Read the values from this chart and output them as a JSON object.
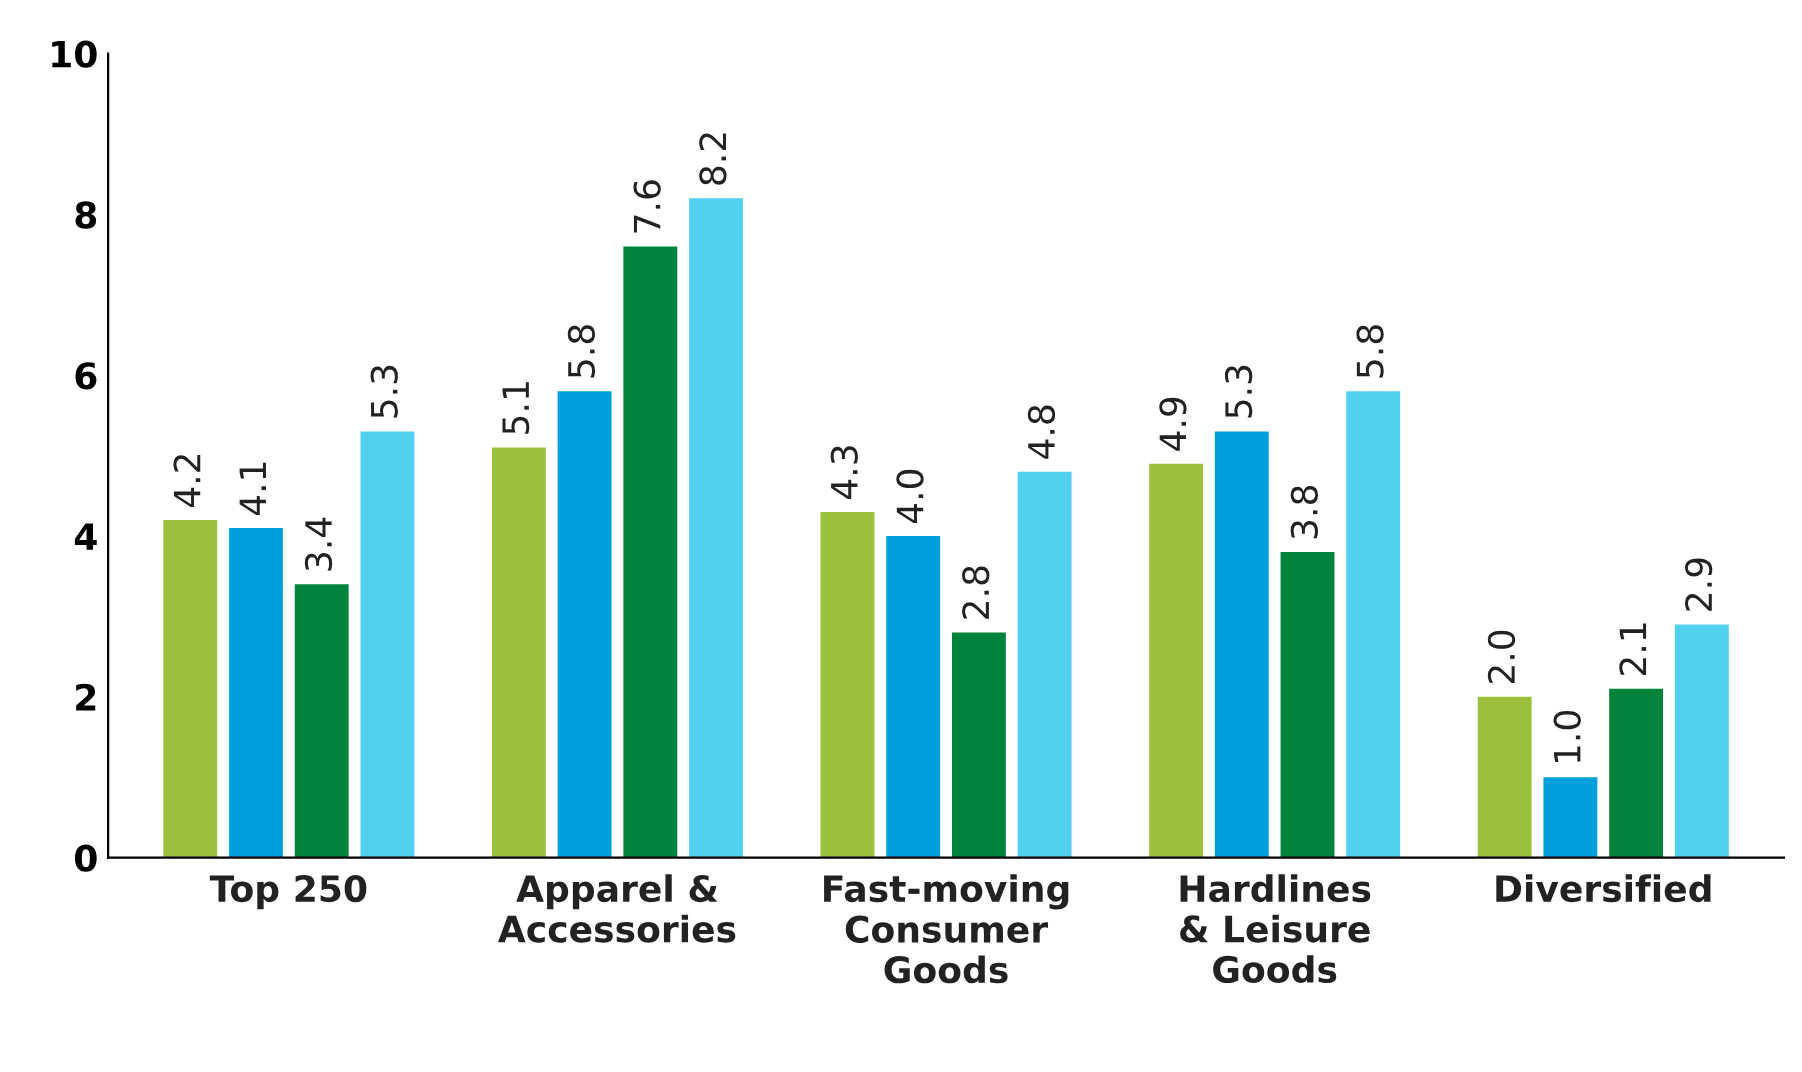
{
  "chart_data": {
    "type": "bar",
    "categories": [
      "Top 250",
      "Apparel &\nAccessories",
      "Fast-moving\nConsumer\nGoods",
      "Hardlines\n& Leisure\nGoods",
      "Diversified"
    ],
    "series": [
      {
        "color": "#9bc13c",
        "values": [
          4.2,
          5.1,
          4.3,
          4.9,
          2.0
        ],
        "value_labels": [
          "4.2",
          "5.1",
          "4.3",
          "4.9",
          "2.0"
        ]
      },
      {
        "color": "#00a0dc",
        "values": [
          4.1,
          5.8,
          4.0,
          5.3,
          1.0
        ],
        "value_labels": [
          "4.1",
          "5.8",
          "4.0",
          "5.3",
          "1.0"
        ]
      },
      {
        "color": "#00843d",
        "values": [
          3.4,
          7.6,
          2.8,
          3.8,
          2.1
        ],
        "value_labels": [
          "3.4",
          "7.6",
          "2.8",
          "3.8",
          "2.1"
        ]
      },
      {
        "color": "#52d0ef",
        "values": [
          5.3,
          8.2,
          4.8,
          5.8,
          2.9
        ],
        "value_labels": [
          "5.3",
          "8.2",
          "4.8",
          "5.8",
          "2.9"
        ]
      }
    ],
    "ylim": [
      0,
      10
    ],
    "yticks": [
      0,
      2,
      4,
      6,
      8,
      10
    ],
    "grid": false
  }
}
